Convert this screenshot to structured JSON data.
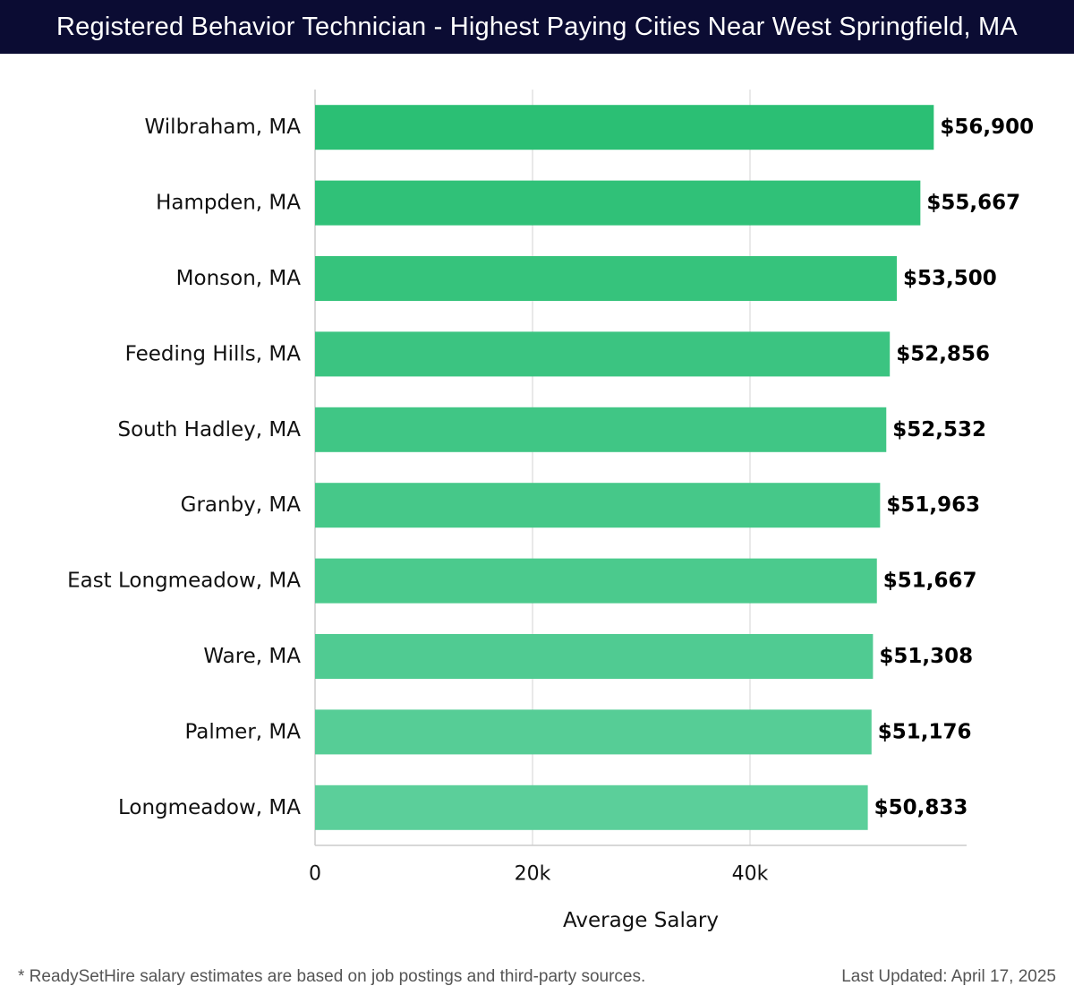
{
  "header": {
    "title": "Registered Behavior Technician - Highest Paying Cities Near West Springfield, MA"
  },
  "chart_data": {
    "type": "bar",
    "orientation": "horizontal",
    "title": "Registered Behavior Technician - Highest Paying Cities Near West Springfield, MA",
    "xlabel": "Average Salary",
    "ylabel": "",
    "xlim": [
      0,
      60000
    ],
    "grid": true,
    "categories": [
      "Wilbraham, MA",
      "Hampden, MA",
      "Monson, MA",
      "Feeding Hills, MA",
      "South Hadley, MA",
      "Granby, MA",
      "East Longmeadow, MA",
      "Ware, MA",
      "Palmer, MA",
      "Longmeadow, MA"
    ],
    "values": [
      56900,
      55667,
      53500,
      52856,
      52532,
      51963,
      51667,
      51308,
      51176,
      50833
    ],
    "value_labels": [
      "$56,900",
      "$55,667",
      "$53,500",
      "$52,856",
      "$52,532",
      "$51,963",
      "$51,667",
      "$51,308",
      "$51,176",
      "$50,833"
    ],
    "x_ticks": [
      0,
      20000,
      40000
    ],
    "x_tick_labels": [
      "0",
      "20k",
      "40k"
    ],
    "colors": {
      "bar_start": "#2bbf74",
      "bar_end": "#5bcf9a",
      "grid": "#e2e2e2",
      "axis": "#cccccc",
      "text": "#111111"
    }
  },
  "footer": {
    "note": "* ReadySetHire salary estimates are based on job postings and third-party sources.",
    "updated": "Last Updated: April 17, 2025"
  }
}
